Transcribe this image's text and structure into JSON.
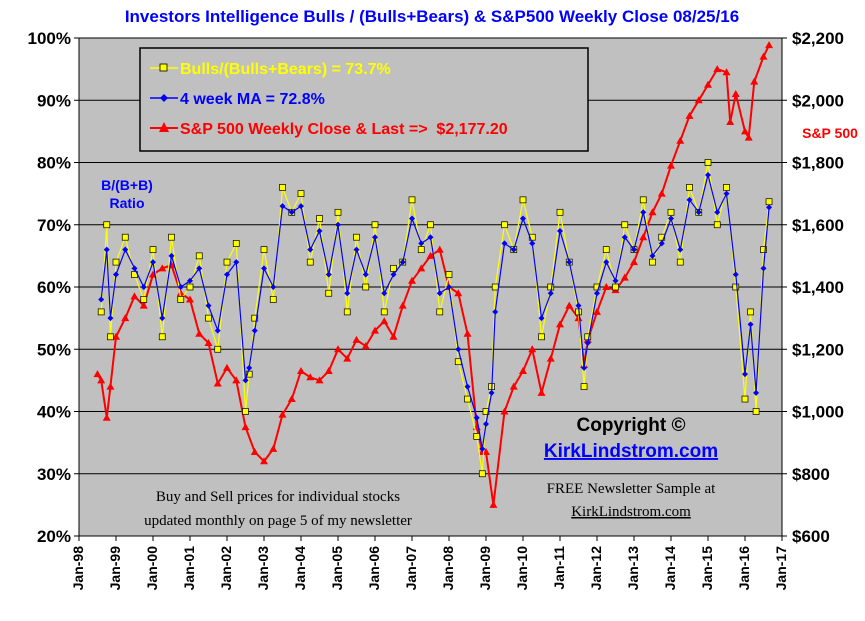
{
  "chart_data": {
    "type": "line",
    "title": "Investors Intelligence Bulls / (Bulls+Bears) & S&P500 Weekly Close 08/25/16",
    "y_left": {
      "ticks": [
        "100%",
        "90%",
        "80%",
        "70%",
        "60%",
        "50%",
        "40%",
        "30%",
        "20%"
      ],
      "range": [
        20,
        100
      ],
      "label_lines": [
        "B/(B+B)",
        "Ratio"
      ]
    },
    "y_right": {
      "ticks": [
        "$2,200",
        "$2,000",
        "$1,800",
        "$1,600",
        "$1,400",
        "$1,200",
        "$1,000",
        "$800",
        "$600"
      ],
      "range": [
        600,
        2200
      ],
      "label": "S&P 500"
    },
    "x_axis": {
      "ticks": [
        "Jan-98",
        "Jan-99",
        "Jan-00",
        "Jan-01",
        "Jan-02",
        "Jan-03",
        "Jan-04",
        "Jan-05",
        "Jan-06",
        "Jan-07",
        "Jan-08",
        "Jan-09",
        "Jan-10",
        "Jan-11",
        "Jan-12",
        "Jan-13",
        "Jan-14",
        "Jan-15",
        "Jan-16",
        "Jan-17"
      ],
      "range": [
        1998.0,
        2017.0
      ]
    },
    "grid": "horizontal",
    "legend_position": "top-left",
    "series": [
      {
        "name": "Bulls/(Bulls+Bears) = 73.7%",
        "axis": "left",
        "color": "#ffff00",
        "marker": "square",
        "x": [
          1998.6,
          1998.75,
          1998.85,
          1999.0,
          1999.25,
          1999.5,
          1999.75,
          2000.0,
          2000.25,
          2000.5,
          2000.75,
          2001.0,
          2001.25,
          2001.5,
          2001.75,
          2002.0,
          2002.25,
          2002.5,
          2002.6,
          2002.75,
          2003.0,
          2003.25,
          2003.5,
          2003.75,
          2004.0,
          2004.25,
          2004.5,
          2004.75,
          2005.0,
          2005.25,
          2005.5,
          2005.75,
          2006.0,
          2006.25,
          2006.5,
          2006.75,
          2007.0,
          2007.25,
          2007.5,
          2007.75,
          2008.0,
          2008.25,
          2008.5,
          2008.75,
          2008.9,
          2009.0,
          2009.15,
          2009.25,
          2009.5,
          2009.75,
          2010.0,
          2010.25,
          2010.5,
          2010.75,
          2011.0,
          2011.25,
          2011.5,
          2011.65,
          2011.75,
          2012.0,
          2012.25,
          2012.5,
          2012.75,
          2013.0,
          2013.25,
          2013.5,
          2013.75,
          2014.0,
          2014.25,
          2014.5,
          2014.75,
          2015.0,
          2015.25,
          2015.5,
          2015.75,
          2016.0,
          2016.15,
          2016.3,
          2016.5,
          2016.65
        ],
        "y": [
          56,
          70,
          52,
          64,
          68,
          62,
          58,
          66,
          52,
          68,
          58,
          60,
          65,
          55,
          50,
          64,
          67,
          40,
          46,
          55,
          66,
          58,
          76,
          72,
          75,
          64,
          71,
          59,
          72,
          56,
          68,
          60,
          70,
          56,
          63,
          64,
          74,
          66,
          70,
          56,
          62,
          48,
          42,
          36,
          30,
          40,
          44,
          60,
          70,
          66,
          74,
          68,
          52,
          60,
          72,
          64,
          56,
          44,
          52,
          60,
          66,
          60,
          70,
          66,
          74,
          64,
          68,
          72,
          64,
          76,
          72,
          80,
          70,
          76,
          60,
          42,
          56,
          40,
          66,
          73.7
        ]
      },
      {
        "name": "4 week MA = 72.8%",
        "axis": "left",
        "color": "#0000ff",
        "marker": "diamond",
        "x": [
          1998.6,
          1998.75,
          1998.85,
          1999.0,
          1999.25,
          1999.5,
          1999.75,
          2000.0,
          2000.25,
          2000.5,
          2000.75,
          2001.0,
          2001.25,
          2001.5,
          2001.75,
          2002.0,
          2002.25,
          2002.5,
          2002.6,
          2002.75,
          2003.0,
          2003.25,
          2003.5,
          2003.75,
          2004.0,
          2004.25,
          2004.5,
          2004.75,
          2005.0,
          2005.25,
          2005.5,
          2005.75,
          2006.0,
          2006.25,
          2006.5,
          2006.75,
          2007.0,
          2007.25,
          2007.5,
          2007.75,
          2008.0,
          2008.25,
          2008.5,
          2008.75,
          2008.9,
          2009.0,
          2009.15,
          2009.25,
          2009.5,
          2009.75,
          2010.0,
          2010.25,
          2010.5,
          2010.75,
          2011.0,
          2011.25,
          2011.5,
          2011.65,
          2011.75,
          2012.0,
          2012.25,
          2012.5,
          2012.75,
          2013.0,
          2013.25,
          2013.5,
          2013.75,
          2014.0,
          2014.25,
          2014.5,
          2014.75,
          2015.0,
          2015.25,
          2015.5,
          2015.75,
          2016.0,
          2016.15,
          2016.3,
          2016.5,
          2016.65
        ],
        "y": [
          58,
          66,
          55,
          62,
          66,
          63,
          60,
          64,
          55,
          65,
          60,
          61,
          63,
          57,
          53,
          62,
          64,
          45,
          47,
          53,
          63,
          60,
          73,
          72,
          73,
          66,
          69,
          62,
          70,
          59,
          66,
          62,
          68,
          59,
          62,
          64,
          71,
          67,
          68,
          59,
          60,
          50,
          44,
          39,
          34,
          38,
          43,
          56,
          67,
          66,
          71,
          67,
          55,
          59,
          69,
          64,
          57,
          47,
          51,
          59,
          64,
          61,
          68,
          66,
          72,
          65,
          67,
          71,
          66,
          74,
          72,
          78,
          72,
          75,
          62,
          46,
          54,
          43,
          63,
          72.8
        ]
      },
      {
        "name": "S&P 500 Weekly Close & Last =>  $2,177.20",
        "axis": "right",
        "color": "#ff0000",
        "marker": "triangle",
        "x": [
          1998.5,
          1998.6,
          1998.75,
          1998.85,
          1999.0,
          1999.25,
          1999.5,
          1999.75,
          2000.0,
          2000.25,
          2000.5,
          2000.75,
          2001.0,
          2001.25,
          2001.5,
          2001.75,
          2002.0,
          2002.25,
          2002.5,
          2002.75,
          2003.0,
          2003.25,
          2003.5,
          2003.75,
          2004.0,
          2004.25,
          2004.5,
          2004.75,
          2005.0,
          2005.25,
          2005.5,
          2005.75,
          2006.0,
          2006.25,
          2006.5,
          2006.75,
          2007.0,
          2007.25,
          2007.5,
          2007.75,
          2008.0,
          2008.25,
          2008.5,
          2008.75,
          2008.9,
          2009.0,
          2009.2,
          2009.5,
          2009.75,
          2010.0,
          2010.25,
          2010.5,
          2010.75,
          2011.0,
          2011.25,
          2011.5,
          2011.65,
          2011.75,
          2012.0,
          2012.25,
          2012.5,
          2012.75,
          2013.0,
          2013.25,
          2013.5,
          2013.75,
          2014.0,
          2014.25,
          2014.5,
          2014.75,
          2015.0,
          2015.25,
          2015.5,
          2015.6,
          2015.75,
          2016.0,
          2016.1,
          2016.25,
          2016.5,
          2016.65
        ],
        "y": [
          1120,
          1100,
          980,
          1080,
          1240,
          1300,
          1370,
          1340,
          1440,
          1460,
          1470,
          1380,
          1360,
          1250,
          1220,
          1090,
          1140,
          1100,
          950,
          870,
          840,
          880,
          990,
          1040,
          1130,
          1110,
          1100,
          1130,
          1200,
          1170,
          1230,
          1210,
          1260,
          1290,
          1240,
          1340,
          1420,
          1460,
          1500,
          1520,
          1400,
          1380,
          1250,
          950,
          870,
          870,
          700,
          1000,
          1080,
          1130,
          1200,
          1060,
          1170,
          1280,
          1340,
          1300,
          1150,
          1230,
          1320,
          1400,
          1390,
          1430,
          1480,
          1560,
          1640,
          1700,
          1790,
          1870,
          1950,
          2000,
          2050,
          2100,
          2090,
          1930,
          2020,
          1900,
          1880,
          2060,
          2140,
          2177.2
        ]
      }
    ]
  },
  "annotations": {
    "copyright": "Copyright ©",
    "website": "KirkLindstrom.com",
    "note_line1": "Buy and Sell prices for individual stocks",
    "note_line2": "updated monthly on page 5 of my newsletter",
    "newsletter_line1": "FREE Newsletter Sample at",
    "newsletter_line2": "KirkLindstrom.com"
  },
  "colors": {
    "plot_background": "#c0c0c0",
    "grid": "#000000",
    "title": "#0000ff"
  }
}
